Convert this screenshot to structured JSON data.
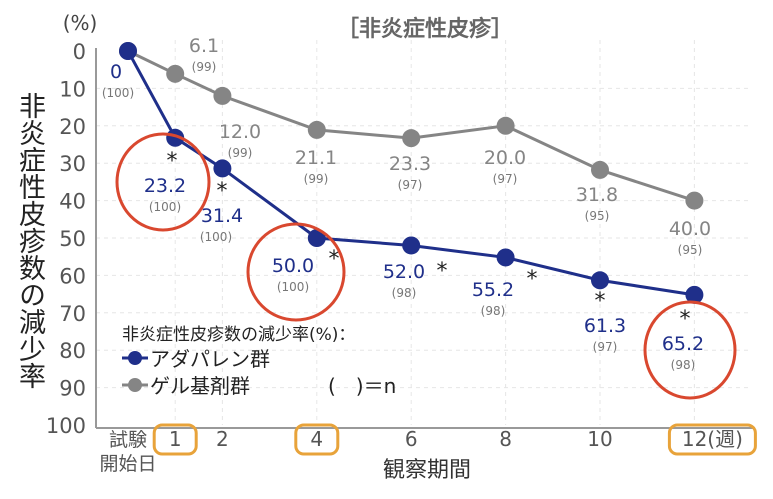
{
  "chart_data": {
    "type": "line",
    "title": "［非炎症性皮疹］",
    "ylabel": "非炎症性皮疹数の減少率",
    "yunit": "(%)",
    "xlabel": "観察期間",
    "ylim": [
      0,
      100
    ],
    "y_inverted": true,
    "yticks": [
      "0",
      "10",
      "20",
      "30",
      "40",
      "50",
      "60",
      "70",
      "80",
      "90",
      "100"
    ],
    "x": [
      0,
      1,
      2,
      4,
      6,
      8,
      10,
      12
    ],
    "xtick_labels": [
      {
        "x": 0,
        "label": "試験",
        "label2": "開始日"
      },
      {
        "x": 1,
        "label": "1"
      },
      {
        "x": 2,
        "label": "2"
      },
      {
        "x": 4,
        "label": "4"
      },
      {
        "x": 6,
        "label": "6"
      },
      {
        "x": 8,
        "label": "8"
      },
      {
        "x": 10,
        "label": "10"
      },
      {
        "x": 12,
        "label": "12(週)"
      }
    ],
    "highlighted_weeks": [
      1,
      4,
      12
    ],
    "legend_title": "非炎症性皮疹数の減少率(%)：",
    "legend_note": "(　)＝n",
    "legend_placement": "bottom-left",
    "series": [
      {
        "name": "アダパレン群",
        "color": "#1f2f8a",
        "values": [
          0,
          23.2,
          31.4,
          50.0,
          52.0,
          55.2,
          61.3,
          65.2
        ],
        "labels": [
          "0",
          "23.2",
          "31.4",
          "50.0",
          "52.0",
          "55.2",
          "61.3",
          "65.2"
        ],
        "n": [
          "(100)",
          "(100)",
          "(100)",
          "(100)",
          "(98)",
          "(98)",
          "(97)",
          "(98)"
        ],
        "significant": [
          false,
          true,
          true,
          true,
          true,
          true,
          true,
          true
        ]
      },
      {
        "name": "ゲル基剤群",
        "color": "#858585",
        "values": [
          0,
          6.1,
          12.0,
          21.1,
          23.3,
          20.0,
          31.8,
          40.0
        ],
        "labels": [
          "",
          "6.1",
          "12.0",
          "21.1",
          "23.3",
          "20.0",
          "31.8",
          "40.0"
        ],
        "n": [
          "",
          "(99)",
          "(99)",
          "(99)",
          "(97)",
          "(97)",
          "(95)",
          "(95)"
        ],
        "significant": [
          false,
          false,
          false,
          false,
          false,
          false,
          false,
          false
        ]
      }
    ],
    "significance_marker": "*",
    "circled_values": [
      "23.2",
      "50.0",
      "65.2"
    ],
    "colors": {
      "circle": "#d9482f",
      "box": "#e8a33a",
      "grid": "#e6e6e6",
      "axis": "#999999"
    }
  }
}
